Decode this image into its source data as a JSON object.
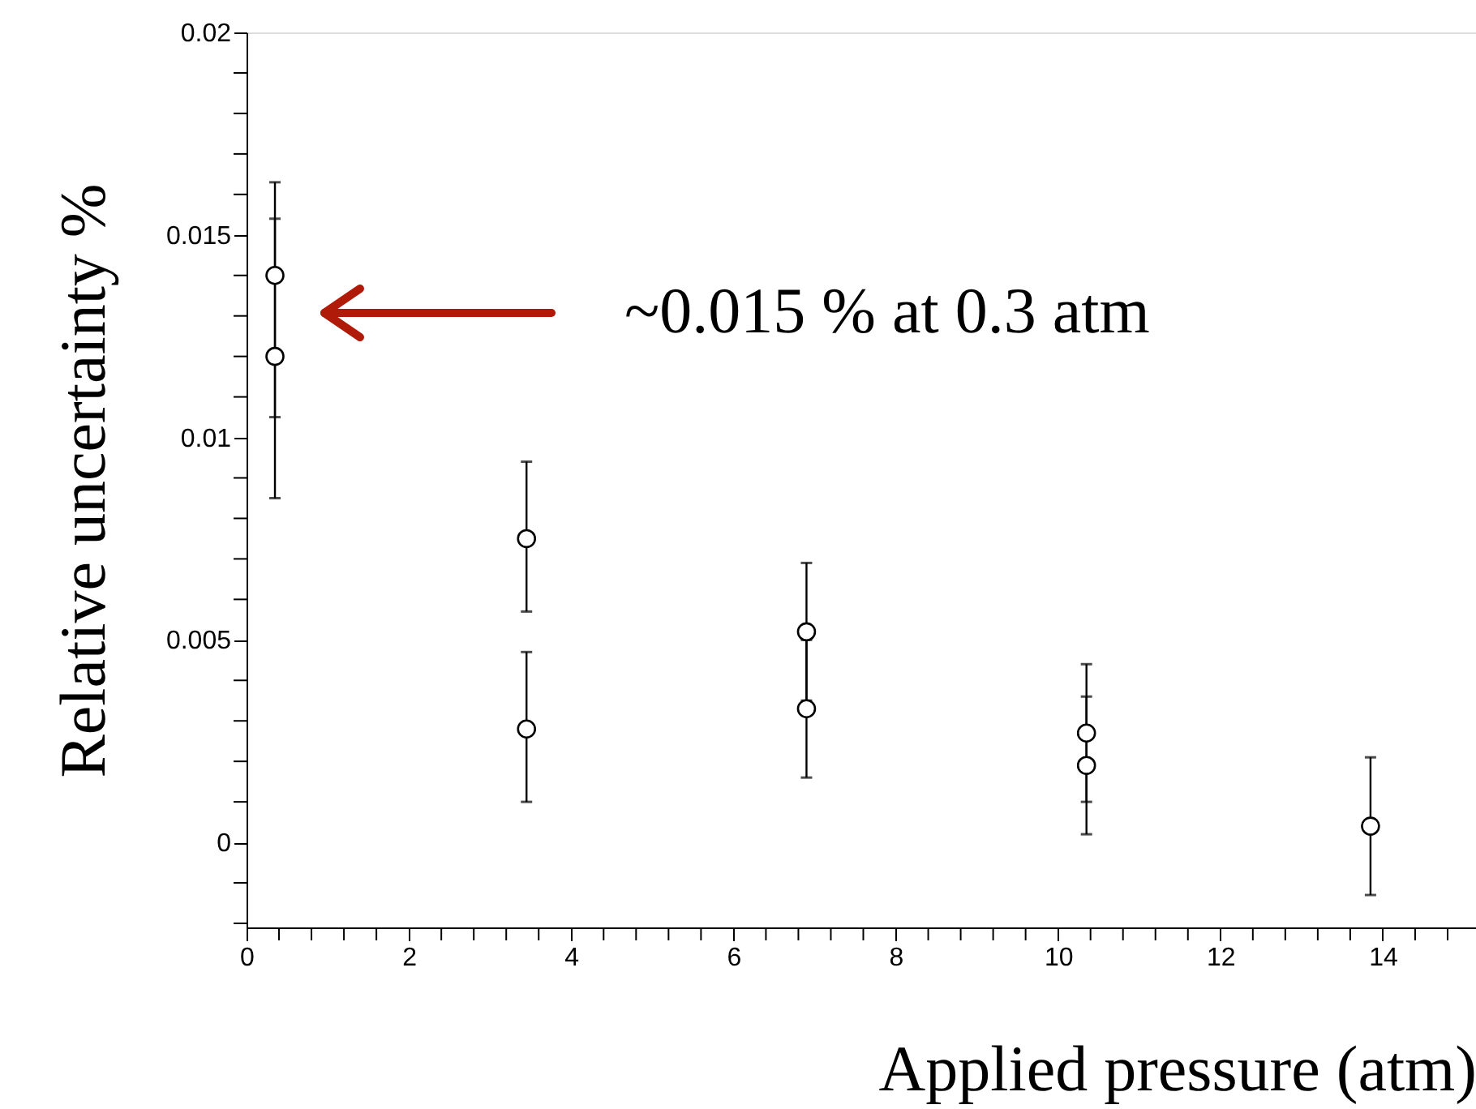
{
  "chart_data": {
    "type": "scatter",
    "xlabel": "Applied  pressure (atm)",
    "ylabel": "Relative uncertainty %",
    "x": [
      0.35,
      0.35,
      3.45,
      3.45,
      6.9,
      6.9,
      10.35,
      10.35,
      13.85
    ],
    "series": [
      {
        "color": "#000000",
        "values": [
          0.014,
          0.012,
          0.0075,
          0.0028,
          0.0052,
          0.0033,
          0.0027,
          0.0019,
          0.0004
        ],
        "errors": [
          [
            0.0105,
            0.0163
          ],
          [
            0.0085,
            0.0154
          ],
          [
            0.0057,
            0.0094
          ],
          [
            0.001,
            0.0047
          ],
          [
            0.0035,
            0.0069
          ],
          [
            0.0016,
            0.005
          ],
          [
            0.001,
            0.0044
          ],
          [
            0.0002,
            0.0036
          ],
          [
            -0.0013,
            0.0021
          ]
        ]
      }
    ],
    "marker": "circle",
    "grid": false,
    "xlim": [
      0,
      15.15
    ],
    "ylim": [
      -0.0021,
      0.02
    ],
    "xticks": [
      0,
      {
        "value": 0.4,
        "label": null
      },
      {
        "value": 0.8,
        "label": null
      },
      {
        "value": 1.2,
        "label": null
      },
      {
        "value": 1.6,
        "label": null
      },
      2,
      {
        "value": 2.4,
        "label": null
      },
      {
        "value": 2.8,
        "label": null
      },
      {
        "value": 3.2,
        "label": null
      },
      {
        "value": 3.6,
        "label": null
      },
      4,
      {
        "value": 4.4,
        "label": null
      },
      {
        "value": 4.8,
        "label": null
      },
      {
        "value": 5.2,
        "label": null
      },
      {
        "value": 5.6,
        "label": null
      },
      6,
      {
        "value": 6.4,
        "label": null
      },
      {
        "value": 6.8,
        "label": null
      },
      {
        "value": 7.2,
        "label": null
      },
      {
        "value": 7.6,
        "label": null
      },
      8,
      {
        "value": 8.4,
        "label": null
      },
      {
        "value": 8.8,
        "label": null
      },
      {
        "value": 9.2,
        "label": null
      },
      {
        "value": 9.6,
        "label": null
      },
      10,
      {
        "value": 10.4,
        "label": null
      },
      {
        "value": 10.8,
        "label": null
      },
      {
        "value": 11.2,
        "label": null
      },
      {
        "value": 11.6,
        "label": null
      },
      12,
      {
        "value": 12.4,
        "label": null
      },
      {
        "value": 12.8,
        "label": null
      },
      {
        "value": 13.2,
        "label": null
      },
      {
        "value": 13.6,
        "label": null
      },
      14,
      {
        "value": 14.4,
        "label": null
      },
      {
        "value": 14.8,
        "label": null
      }
    ],
    "yticks": [
      {
        "value": -0.002,
        "label": null
      },
      {
        "value": -0.001,
        "label": null
      },
      0,
      {
        "value": 0.001,
        "label": null
      },
      {
        "value": 0.002,
        "label": null
      },
      {
        "value": 0.003,
        "label": null
      },
      {
        "value": 0.004,
        "label": null
      },
      0.005,
      {
        "value": 0.006,
        "label": null
      },
      {
        "value": 0.007,
        "label": null
      },
      {
        "value": 0.008,
        "label": null
      },
      {
        "value": 0.009,
        "label": null
      },
      0.01,
      {
        "value": 0.011,
        "label": null
      },
      {
        "value": 0.012,
        "label": null
      },
      {
        "value": 0.013,
        "label": null
      },
      {
        "value": 0.014,
        "label": null
      },
      0.015,
      {
        "value": 0.016,
        "label": null
      },
      {
        "value": 0.017,
        "label": null
      },
      {
        "value": 0.018,
        "label": null
      },
      {
        "value": 0.019,
        "label": null
      },
      0.02
    ],
    "annotations": [
      "~0.015 % at 0.3 atm"
    ]
  }
}
